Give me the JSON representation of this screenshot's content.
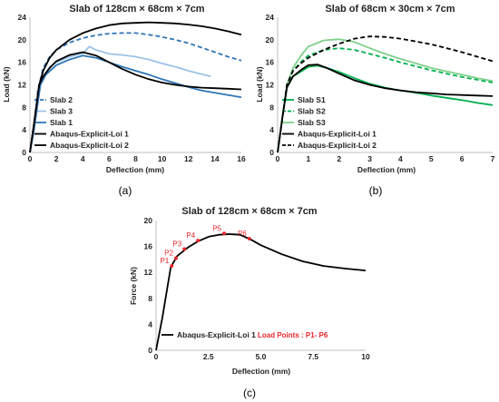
{
  "chart_data": [
    {
      "type": "line",
      "panel": "(a)",
      "title": "Slab of 128cm × 68cm × 7cm",
      "xlabel": "Deflection (mm)",
      "ylabel": "Load (kN)",
      "xlim": [
        0,
        16
      ],
      "ylim": [
        0,
        24
      ],
      "xticks": [
        "0",
        "2",
        "4",
        "6",
        "8",
        "10",
        "12",
        "14",
        "16"
      ],
      "yticks": [
        "0",
        "4",
        "8",
        "12",
        "16",
        "20",
        "24"
      ],
      "legend_position": "bottom-left",
      "series": [
        {
          "name": "Slab 2",
          "color": "#2e75b6",
          "style": "dashed",
          "x": [
            0,
            0.3,
            0.6,
            1.0,
            1.5,
            2.0,
            3.0,
            4.0,
            5.0,
            6.0,
            7.0,
            8.0,
            9.0,
            10.0,
            11.0,
            12.0,
            13.0,
            14.0,
            15.0,
            16.0
          ],
          "y": [
            0,
            4,
            11,
            15,
            17,
            18.2,
            19.5,
            20.3,
            20.8,
            21.1,
            21.2,
            21.2,
            20.9,
            20.5,
            20.0,
            19.4,
            18.6,
            17.8,
            17.0,
            16.3
          ]
        },
        {
          "name": "Slab 3",
          "color": "#9dc3e6",
          "style": "solid",
          "x": [
            0,
            0.3,
            0.7,
            1.0,
            1.5,
            2.0,
            3.0,
            4.0,
            4.5,
            5.0,
            6.0,
            7.0,
            8.0,
            9.0,
            10.0,
            11.0,
            12.0,
            13.0,
            13.7
          ],
          "y": [
            0,
            4,
            12,
            13.5,
            15.2,
            16,
            17,
            17.6,
            18.8,
            18.2,
            17.5,
            17.3,
            17.0,
            16.5,
            15.8,
            15.2,
            14.5,
            13.9,
            13.5
          ]
        },
        {
          "name": "Slab 1",
          "color": "#2e75b6",
          "style": "solid",
          "x": [
            0,
            0.3,
            0.8,
            1.2,
            2.0,
            3.0,
            4.0,
            5.0,
            6.0,
            7.0,
            8.0,
            9.0,
            10.0,
            11.0,
            12.0,
            13.0,
            14.0,
            15.0,
            16.0
          ],
          "y": [
            0,
            4,
            12,
            13.8,
            15.5,
            16.5,
            17.2,
            16.8,
            16.0,
            15.2,
            14.5,
            13.8,
            13.0,
            12.3,
            11.6,
            11.0,
            10.6,
            10.2,
            9.8
          ]
        },
        {
          "name": "Abaqus-Explicit-Loi 1",
          "color": "#000000",
          "style": "solid",
          "x": [
            0,
            0.3,
            0.7,
            1.0,
            1.5,
            2.0,
            3.0,
            4.0,
            5.0,
            6.0,
            7.0,
            8.0,
            9.0,
            10.0,
            11.0,
            12.0,
            13.0,
            14.0,
            15.0,
            16.0
          ],
          "y": [
            0,
            5,
            12,
            13.5,
            15,
            16.2,
            17.3,
            17.8,
            17.2,
            16,
            14.8,
            13.8,
            13.0,
            12.4,
            12.0,
            11.7,
            11.5,
            11.4,
            11.3,
            11.2
          ]
        },
        {
          "name": "Abaqus-Explicit-Loi 2",
          "color": "#000000",
          "style": "solid",
          "x": [
            0,
            0.3,
            0.7,
            1.0,
            1.5,
            2.0,
            3.0,
            4.0,
            5.0,
            6.0,
            7.0,
            8.0,
            9.0,
            10.0,
            11.0,
            12.0,
            13.0,
            14.0,
            15.0,
            16.0
          ],
          "y": [
            0,
            5,
            12,
            14.5,
            16.8,
            18.2,
            20.0,
            21.2,
            22.0,
            22.6,
            22.9,
            23.0,
            23.1,
            23.0,
            22.9,
            22.7,
            22.4,
            22.0,
            21.5,
            20.9
          ]
        }
      ]
    },
    {
      "type": "line",
      "panel": "(b)",
      "title": "Slab of  68cm × 30cm × 7cm",
      "xlabel": "Deflection (mm)",
      "ylabel": "Load (kN)",
      "xlim": [
        0,
        7
      ],
      "ylim": [
        0,
        24
      ],
      "xticks": [
        "0",
        "1",
        "2",
        "3",
        "4",
        "5",
        "6",
        "7"
      ],
      "yticks": [
        "0",
        "4",
        "8",
        "12",
        "16",
        "20",
        "24"
      ],
      "legend_position": "bottom-left",
      "series": [
        {
          "name": "Slab S1",
          "color": "#00b050",
          "style": "solid",
          "x": [
            0,
            0.15,
            0.3,
            0.5,
            0.8,
            1.0,
            1.3,
            1.6,
            2.0,
            2.5,
            3.0,
            3.5,
            4.0,
            4.5,
            5.0,
            5.5,
            6.0,
            6.5,
            7.0
          ],
          "y": [
            0,
            6,
            11.5,
            13.5,
            14.5,
            15.2,
            15.4,
            15.0,
            14.3,
            13.2,
            12.2,
            11.5,
            11.0,
            10.6,
            10.1,
            9.7,
            9.3,
            8.8,
            8.4
          ]
        },
        {
          "name": "Slab S2",
          "color": "#00b050",
          "style": "dashed",
          "x": [
            0,
            0.15,
            0.3,
            0.5,
            0.8,
            1.0,
            1.5,
            2.0,
            2.5,
            3.0,
            3.5,
            4.0,
            4.5,
            5.0,
            5.5,
            6.0,
            6.5,
            7.0
          ],
          "y": [
            0,
            6,
            12,
            14.5,
            16.3,
            17.2,
            18.2,
            18.5,
            18.2,
            17.5,
            16.8,
            16.0,
            15.3,
            14.6,
            14.0,
            13.4,
            12.9,
            12.4
          ]
        },
        {
          "name": "Slab S3",
          "color": "#7fd08a",
          "style": "solid",
          "x": [
            0,
            0.15,
            0.3,
            0.5,
            0.8,
            1.0,
            1.5,
            2.0,
            2.5,
            3.0,
            3.5,
            4.0,
            4.5,
            5.0,
            5.5,
            6.0,
            6.5,
            7.0
          ],
          "y": [
            0,
            6,
            12,
            15,
            17.5,
            18.8,
            19.9,
            20.1,
            19.6,
            18.5,
            17.5,
            16.6,
            15.8,
            15.0,
            14.4,
            13.8,
            13.2,
            12.7
          ]
        },
        {
          "name": "Abaqus-Explicit-Loi 1",
          "color": "#000000",
          "style": "solid",
          "x": [
            0,
            0.15,
            0.3,
            0.5,
            0.8,
            1.0,
            1.3,
            1.6,
            2.0,
            2.5,
            3.0,
            3.5,
            4.0,
            4.5,
            5.0,
            5.5,
            6.0,
            6.5,
            7.0
          ],
          "y": [
            0,
            6,
            11.5,
            13.5,
            14.8,
            15.5,
            15.6,
            15.0,
            14.0,
            12.8,
            12.0,
            11.4,
            11.0,
            10.7,
            10.5,
            10.3,
            10.2,
            10.1,
            10.0
          ]
        },
        {
          "name": "Abaqus-Explicit-Loi 2",
          "color": "#000000",
          "style": "dashed",
          "x": [
            0,
            0.15,
            0.3,
            0.5,
            0.8,
            1.0,
            1.5,
            2.0,
            2.5,
            3.0,
            3.5,
            4.0,
            4.5,
            5.0,
            5.5,
            6.0,
            6.5,
            7.0
          ],
          "y": [
            0,
            6,
            12,
            14.5,
            16.0,
            16.8,
            18.2,
            19.3,
            20.2,
            20.6,
            20.5,
            20.2,
            19.7,
            19.2,
            18.5,
            17.8,
            17.0,
            16.2
          ]
        }
      ]
    },
    {
      "type": "line",
      "panel": "(c)",
      "title": "Slab of 128cm × 68cm × 7cm",
      "xlabel": "Deflection (mm)",
      "ylabel": "Force (kN)",
      "xlim": [
        0,
        10
      ],
      "ylim": [
        0,
        20
      ],
      "xticks": [
        "0",
        "2.5",
        "5.0",
        "7.5",
        "10"
      ],
      "yticks": [
        "0",
        "4",
        "8",
        "12",
        "16",
        "20"
      ],
      "legend_position": "bottom-left",
      "annotation": "Load Points : P1- P6",
      "series": [
        {
          "name": "Abaqus-Explicit-Loi 1",
          "color": "#000000",
          "style": "solid",
          "x": [
            0,
            0.3,
            0.7,
            1.0,
            1.5,
            2.0,
            2.5,
            3.0,
            3.5,
            4.0,
            4.5,
            5.0,
            6.0,
            7.0,
            8.0,
            9.0,
            10.0
          ],
          "y": [
            0,
            5,
            12.8,
            14.5,
            15.8,
            16.8,
            17.5,
            17.8,
            17.9,
            17.8,
            17.1,
            16.2,
            14.8,
            13.7,
            13.0,
            12.6,
            12.3
          ]
        }
      ],
      "points": [
        {
          "label": "P1",
          "x": 0.75,
          "y": 13.0
        },
        {
          "label": "P2",
          "x": 0.95,
          "y": 14.2
        },
        {
          "label": "P3",
          "x": 1.35,
          "y": 15.6
        },
        {
          "label": "P4",
          "x": 2.0,
          "y": 16.9
        },
        {
          "label": "P5",
          "x": 3.25,
          "y": 18.0
        },
        {
          "label": "P6",
          "x": 4.45,
          "y": 17.2
        }
      ]
    }
  ],
  "captions": [
    "(a)",
    "(b)",
    "(c)"
  ],
  "colors": {
    "point_marker": "#e8262b",
    "axis": "#bfbfbf",
    "text": "#222222"
  }
}
